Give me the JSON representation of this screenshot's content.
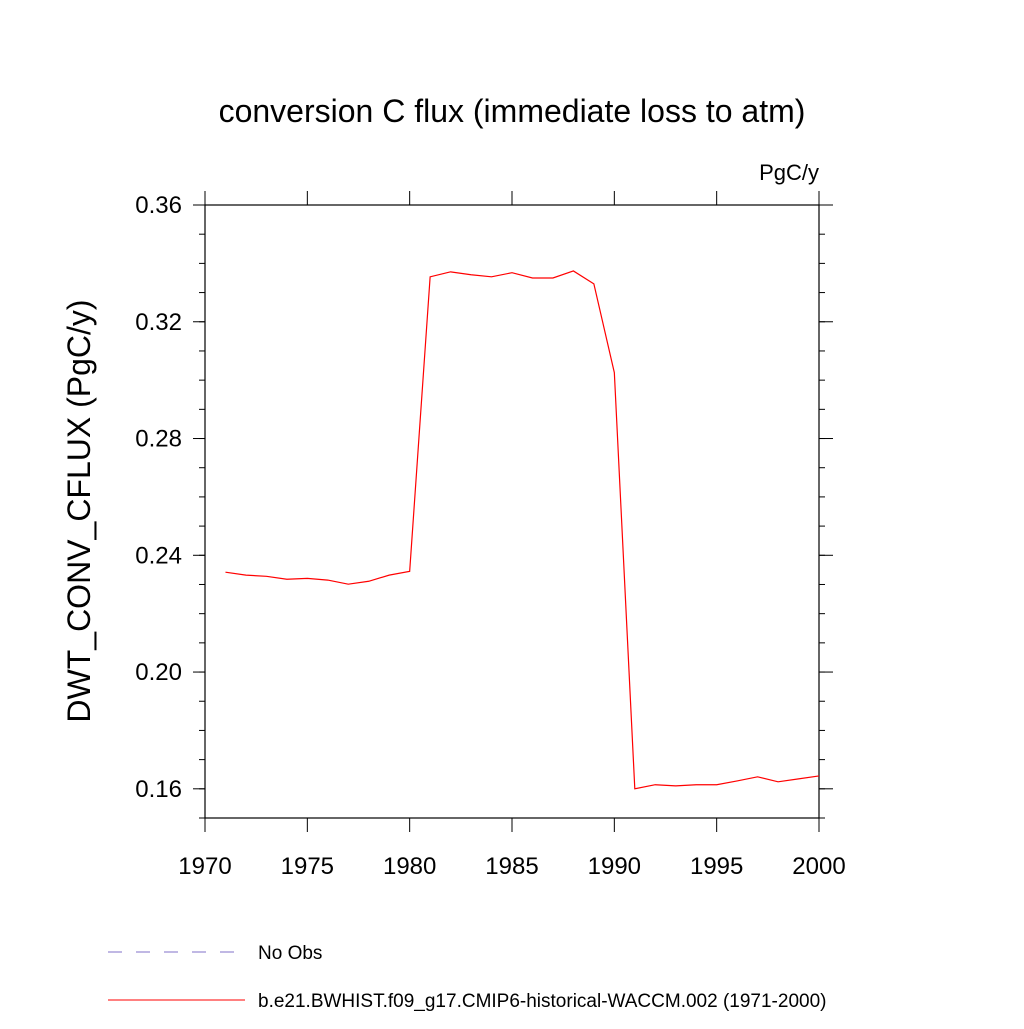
{
  "chart_data": {
    "type": "line",
    "title": "conversion C flux (immediate loss to atm)",
    "units": "PgC/y",
    "y_label": "DWT_CONV_CFLUX  (PgC/y)",
    "x": [
      1971,
      1972,
      1973,
      1974,
      1975,
      1976,
      1977,
      1978,
      1979,
      1980,
      1981,
      1982,
      1983,
      1984,
      1985,
      1986,
      1987,
      1988,
      1989,
      1990,
      1991,
      1992,
      1993,
      1994,
      1995,
      1996,
      1997,
      1998,
      1999,
      2000
    ],
    "series": [
      {
        "name": "b.e21.BWHIST.f09_g17.CMIP6-historical-WACCM.002 (1971-2000)",
        "color": "#ff0000",
        "values": [
          0.2342,
          0.2332,
          0.2328,
          0.2318,
          0.2321,
          0.2315,
          0.2301,
          0.2311,
          0.2332,
          0.2345,
          0.3354,
          0.3371,
          0.3361,
          0.3354,
          0.3368,
          0.335,
          0.335,
          0.3374,
          0.333,
          0.3026,
          0.16,
          0.1614,
          0.161,
          0.1614,
          0.1614,
          0.1627,
          0.1641,
          0.1624,
          0.1634,
          0.1644
        ]
      }
    ],
    "legend_entries": [
      {
        "name": "No Obs",
        "color": "#8070c8",
        "style": "dashed"
      }
    ],
    "xlim": [
      1970,
      2000
    ],
    "xticks": [
      1970,
      1975,
      1980,
      1985,
      1990,
      1995,
      2000
    ],
    "ylim": [
      0.15,
      0.36
    ],
    "yticks": [
      0.16,
      {
        "value": 0.2,
        "label": "0.20"
      },
      0.24,
      0.28,
      0.32,
      0.36
    ],
    "grid": false
  }
}
